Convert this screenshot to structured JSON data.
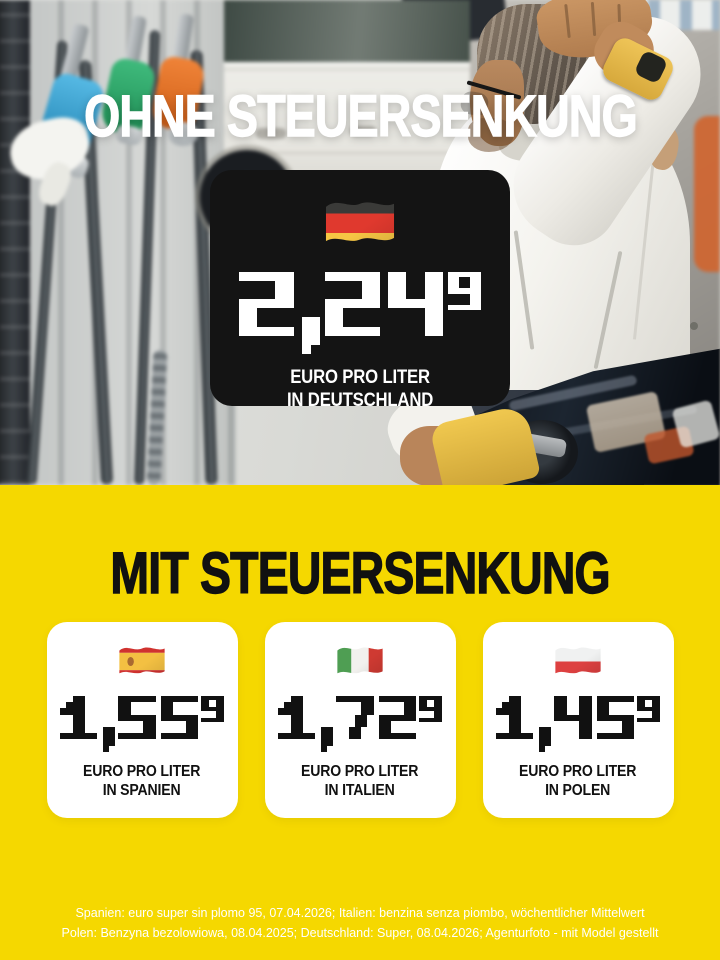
{
  "colors": {
    "background_yellow": "#F5D800",
    "panel_black": "#141414",
    "text_white": "#FFFFFF",
    "text_black": "#111111"
  },
  "top": {
    "headline": "OHNE STEUERSENKUNG",
    "price_card": {
      "flag": "germany",
      "price": "2,24",
      "superscript": "9",
      "label_line1": "EURO PRO LITER",
      "label_line2": "IN DEUTSCHLAND"
    }
  },
  "bottom": {
    "headline": "MIT STEUERSENKUNG",
    "price_cards": [
      {
        "flag": "spain",
        "price": "1,55",
        "superscript": "9",
        "label_line1": "EURO PRO LITER",
        "label_line2": "IN SPANIEN"
      },
      {
        "flag": "italy",
        "price": "1,72",
        "superscript": "9",
        "label_line1": "EURO PRO LITER",
        "label_line2": "IN ITALIEN"
      },
      {
        "flag": "poland",
        "price": "1,45",
        "superscript": "9",
        "label_line1": "EURO PRO LITER",
        "label_line2": "IN POLEN"
      }
    ],
    "footnote_line1": "Spanien: euro super sin plomo 95, 07.04.2026; Italien: benzina senza piombo, wöchentlicher Mittelwert",
    "footnote_line2": "Polen: Benzyna bezolowiowa, 08.04.2025; Deutschland: Super, 08.04.2026; Agenturfoto - mit Model gestellt"
  },
  "flags": {
    "germany": {
      "orientation": "horizontal",
      "stripes": [
        "#3a3a38",
        "#e0392e",
        "#f6c644"
      ]
    },
    "spain": {
      "orientation": "horizontal",
      "stripes": [
        "#d0322f",
        "#f3c042",
        "#d0322f"
      ],
      "weights": [
        10,
        16,
        10
      ],
      "emblem": "#a96a31"
    },
    "italy": {
      "orientation": "vertical",
      "stripes": [
        "#4f9e53",
        "#f2f1ee",
        "#cf3a32"
      ]
    },
    "poland": {
      "orientation": "horizontal",
      "stripes": [
        "#f0f1f1",
        "#dd4040"
      ]
    }
  }
}
